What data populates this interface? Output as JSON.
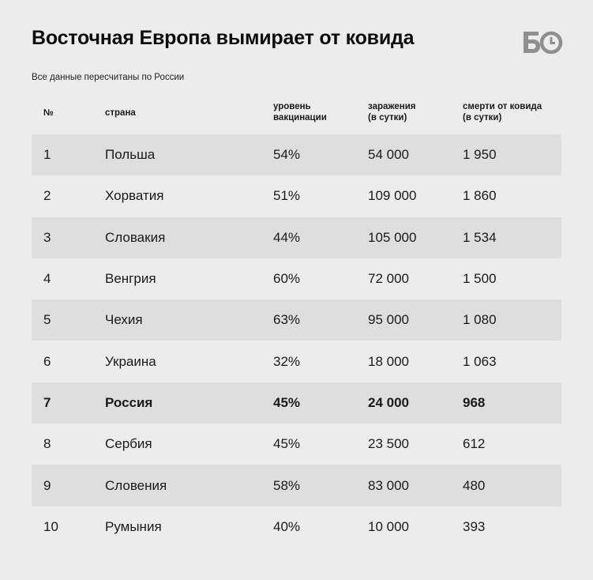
{
  "title": "Восточная Европа вымирает от ковида",
  "subtitle": "Все данные пересчитаны по России",
  "logo": "БО",
  "colors": {
    "background": "#ececec",
    "row_shade": "#dedede",
    "logo": "#8f8f8f"
  },
  "chart_data": {
    "type": "table",
    "columns": [
      "№",
      "страна",
      "уровень\nвакцинации",
      "заражения\n(в сутки)",
      "смерти от ковида\n(в сутки)"
    ],
    "rows": [
      {
        "num": "1",
        "country": "Польша",
        "vaccination": "54%",
        "infections": "54 000",
        "deaths": "1 950",
        "shaded": true,
        "highlight": false
      },
      {
        "num": "2",
        "country": "Хорватия",
        "vaccination": "51%",
        "infections": "109 000",
        "deaths": "1 860",
        "shaded": false,
        "highlight": false
      },
      {
        "num": "3",
        "country": "Словакия",
        "vaccination": "44%",
        "infections": "105 000",
        "deaths": "1 534",
        "shaded": true,
        "highlight": false
      },
      {
        "num": "4",
        "country": "Венгрия",
        "vaccination": "60%",
        "infections": "72 000",
        "deaths": "1 500",
        "shaded": false,
        "highlight": false
      },
      {
        "num": "5",
        "country": "Чехия",
        "vaccination": "63%",
        "infections": "95 000",
        "deaths": "1 080",
        "shaded": true,
        "highlight": false
      },
      {
        "num": "6",
        "country": "Украина",
        "vaccination": "32%",
        "infections": "18 000",
        "deaths": "1 063",
        "shaded": false,
        "highlight": false
      },
      {
        "num": "7",
        "country": "Россия",
        "vaccination": "45%",
        "infections": "24 000",
        "deaths": "968",
        "shaded": true,
        "highlight": true
      },
      {
        "num": "8",
        "country": "Сербия",
        "vaccination": "45%",
        "infections": "23 500",
        "deaths": "612",
        "shaded": false,
        "highlight": false
      },
      {
        "num": "9",
        "country": "Словения",
        "vaccination": "58%",
        "infections": "83 000",
        "deaths": "480",
        "shaded": true,
        "highlight": false
      },
      {
        "num": "10",
        "country": "Румыния",
        "vaccination": "40%",
        "infections": "10 000",
        "deaths": "393",
        "shaded": false,
        "highlight": false
      }
    ]
  }
}
